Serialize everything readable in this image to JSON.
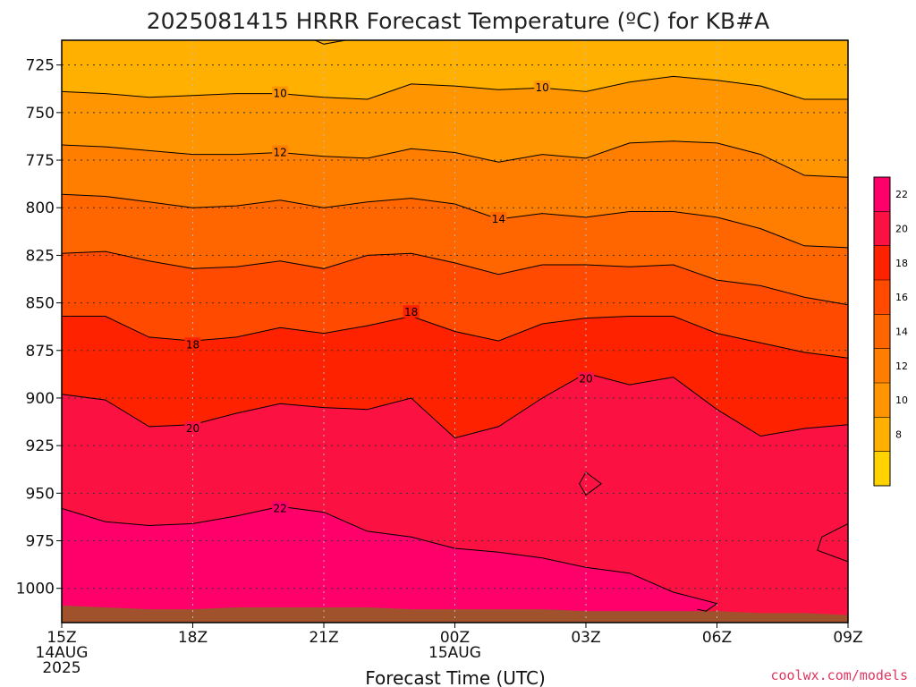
{
  "chart_data": {
    "type": "heatmap",
    "title": "2025081415 HRRR Forecast Temperature (ºC) for KB#A",
    "xlabel": "Forecast Time (UTC)",
    "credit": "coolwx.com/models",
    "y_axis": {
      "quantity": "pressure (hPa)",
      "ylim": [
        1018,
        712
      ],
      "ticks": [
        725,
        750,
        775,
        800,
        825,
        850,
        875,
        900,
        925,
        950,
        975,
        1000
      ]
    },
    "x_axis": {
      "xlim": [
        "15Z 14AUG 2025",
        "09Z 15AUG"
      ],
      "ticks": [
        {
          "lines": [
            "15Z",
            "14AUG",
            "2025"
          ],
          "hour": 0
        },
        {
          "lines": [
            "18Z"
          ],
          "hour": 3
        },
        {
          "lines": [
            "21Z"
          ],
          "hour": 6
        },
        {
          "lines": [
            "00Z",
            "15AUG"
          ],
          "hour": 9
        },
        {
          "lines": [
            "03Z"
          ],
          "hour": 12
        },
        {
          "lines": [
            "06Z"
          ],
          "hour": 15
        },
        {
          "lines": [
            "09Z"
          ],
          "hour": 18
        }
      ]
    },
    "grid": true,
    "colorbar": {
      "placement": "right",
      "levels": [
        6,
        8,
        10,
        12,
        14,
        16,
        18,
        20,
        22,
        24
      ],
      "tick_labels": [
        8,
        10,
        12,
        14,
        16,
        18,
        20,
        22
      ],
      "colors": [
        "#ffd200",
        "#ffb000",
        "#ff9500",
        "#ff7e00",
        "#ff6600",
        "#ff4a00",
        "#ff2200",
        "#fb1242",
        "#ff006a"
      ]
    },
    "hours": [
      0,
      1,
      2,
      3,
      4,
      5,
      6,
      7,
      8,
      9,
      10,
      11,
      12,
      13,
      14,
      15,
      16,
      17,
      18
    ],
    "contours": [
      {
        "level": 10,
        "label": "10",
        "label_at": [
          [
            5,
            740
          ],
          [
            11,
            737
          ]
        ],
        "pressure": [
          739,
          740,
          742,
          741,
          740,
          740,
          742,
          743,
          735,
          736,
          738,
          737,
          739,
          734,
          731,
          733,
          736,
          743,
          743
        ]
      },
      {
        "level": 12,
        "label": "12",
        "label_at": [
          [
            5,
            771
          ]
        ],
        "pressure": [
          767,
          768,
          770,
          772,
          772,
          771,
          773,
          774,
          769,
          771,
          776,
          772,
          774,
          766,
          765,
          766,
          772,
          783,
          784
        ]
      },
      {
        "level": 14,
        "label": "14",
        "label_at": [
          [
            10,
            806
          ]
        ],
        "pressure": [
          793,
          794,
          797,
          800,
          799,
          796,
          800,
          797,
          795,
          798,
          806,
          803,
          805,
          802,
          802,
          805,
          811,
          820,
          821
        ]
      },
      {
        "level": 16,
        "label": "",
        "pressure": [
          824,
          823,
          828,
          832,
          831,
          828,
          832,
          825,
          824,
          829,
          835,
          830,
          830,
          831,
          830,
          838,
          841,
          847,
          851
        ]
      },
      {
        "level": 18,
        "label": "18",
        "label_at": [
          [
            3,
            872
          ],
          [
            8,
            855
          ]
        ],
        "pressure": [
          857,
          857,
          868,
          870,
          868,
          863,
          866,
          862,
          857,
          865,
          870,
          861,
          858,
          857,
          857,
          866,
          871,
          876,
          879
        ]
      },
      {
        "level": 20,
        "label": "20",
        "label_at": [
          [
            3,
            916
          ],
          [
            12,
            890
          ]
        ],
        "pressure": [
          898,
          901,
          915,
          914,
          908,
          903,
          905,
          906,
          900,
          921,
          915,
          900,
          887,
          893,
          889,
          906,
          920,
          916,
          914
        ]
      },
      {
        "level": 22,
        "label": "22",
        "label_at": [
          [
            5,
            958
          ]
        ],
        "pressure": [
          958,
          965,
          967,
          966,
          962,
          957,
          960,
          970,
          973,
          979,
          981,
          984,
          989,
          992,
          1002,
          1008
        ]
      }
    ],
    "warm_pocket_20": {
      "hour": 12,
      "pressure": [
        939,
        951
      ]
    },
    "surface_pressure": [
      1009,
      1010,
      1011,
      1011,
      1010,
      1010,
      1010,
      1010,
      1011,
      1011,
      1011,
      1011,
      1012,
      1012,
      1012,
      1012,
      1013,
      1013,
      1014
    ]
  }
}
